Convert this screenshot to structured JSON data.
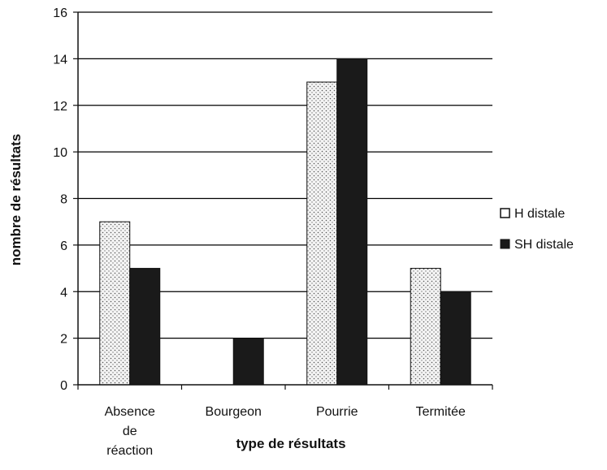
{
  "chart_data": {
    "type": "bar",
    "categories": [
      [
        "Absence",
        "de",
        "réaction"
      ],
      [
        "Bourgeon"
      ],
      [
        "Pourrie"
      ],
      [
        "Termitée"
      ]
    ],
    "series": [
      {
        "name": "H distale",
        "values": [
          7,
          0,
          13,
          5
        ],
        "pattern": "dots"
      },
      {
        "name": "SH distale",
        "values": [
          5,
          2,
          14,
          4
        ],
        "pattern": "solid"
      }
    ],
    "xlabel": "type de résultats",
    "ylabel": "nombre de résultats",
    "ylim": [
      0,
      16
    ],
    "yticks": [
      0,
      2,
      4,
      6,
      8,
      10,
      12,
      14,
      16
    ],
    "grid": true,
    "legend": "right",
    "colors": {
      "solid": "#1a1a1a",
      "dots_bg": "#f4f4f4",
      "dots_fg": "#555555",
      "grid": "#000000"
    }
  }
}
